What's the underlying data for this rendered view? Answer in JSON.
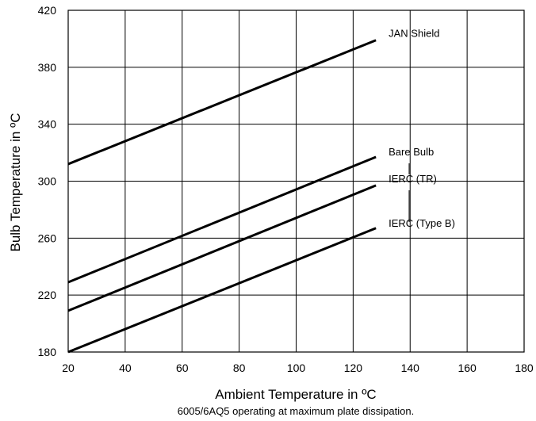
{
  "chart_data": {
    "type": "line",
    "xlabel": "Ambient Temperature in ºC",
    "ylabel": "Bulb Temperature in ºC",
    "caption": "6005/6AQ5 operating at maximum plate dissipation.",
    "xlim": [
      20,
      180
    ],
    "ylim": [
      180,
      420
    ],
    "x_ticks": [
      "20",
      "40",
      "60",
      "80",
      "100",
      "120",
      "140",
      "160",
      "180"
    ],
    "y_ticks": [
      "180",
      "220",
      "260",
      "300",
      "340",
      "380",
      "420"
    ],
    "grid": true,
    "series": [
      {
        "name": "JAN Shield",
        "x": [
          20,
          128
        ],
        "y": [
          312,
          399
        ]
      },
      {
        "name": "Bare Bulb",
        "x": [
          20,
          128
        ],
        "y": [
          229,
          317
        ]
      },
      {
        "name": "IERC (TR)",
        "x": [
          20,
          128
        ],
        "y": [
          209,
          297
        ]
      },
      {
        "name": "IERC (Type B)",
        "x": [
          20,
          128
        ],
        "y": [
          180,
          267
        ]
      }
    ]
  }
}
